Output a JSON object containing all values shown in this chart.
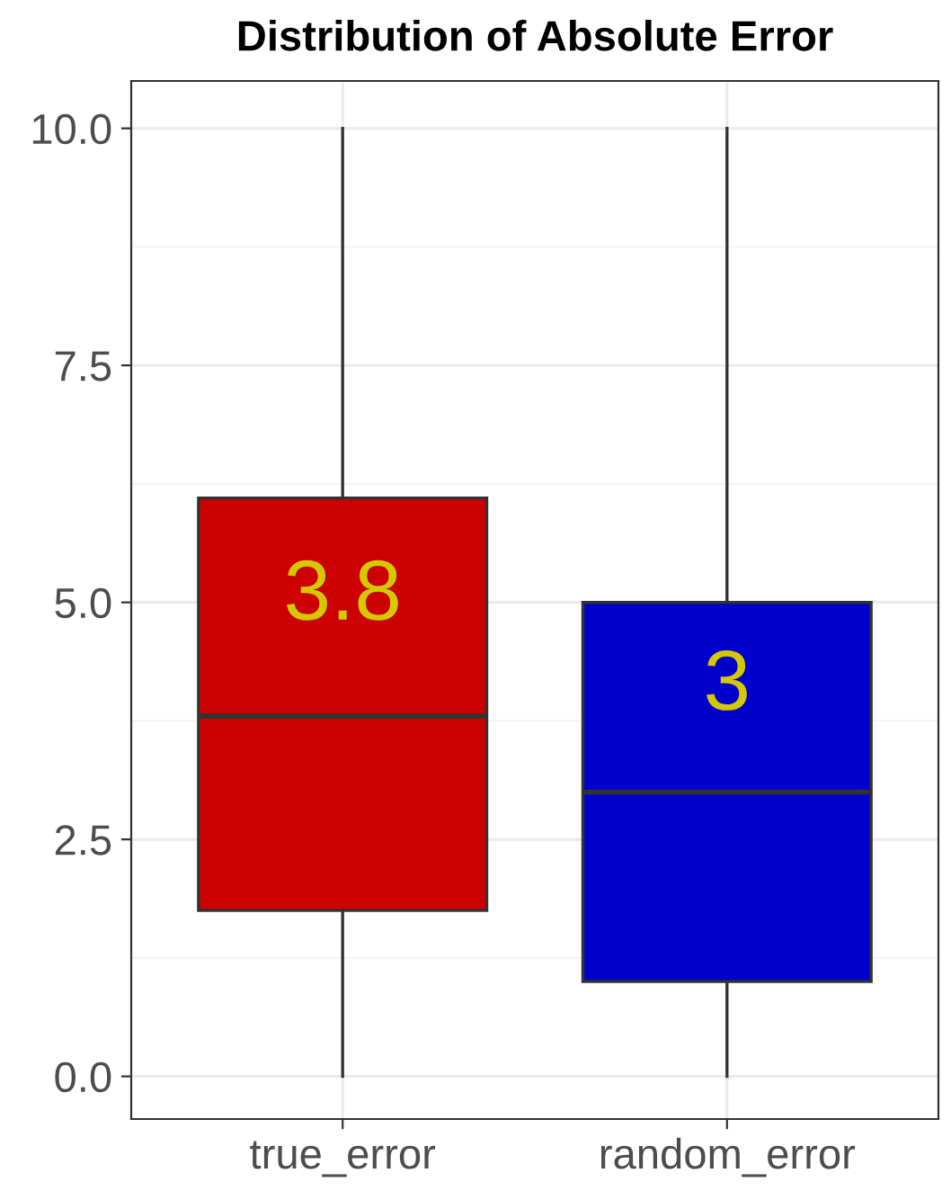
{
  "chart_data": {
    "type": "box",
    "title": "Distribution of Absolute Error",
    "categories": [
      "true_error",
      "random_error"
    ],
    "boxes": [
      {
        "low": 0,
        "q1": 1.75,
        "median": 3.8,
        "q3": 6.1,
        "high": 10
      },
      {
        "low": 0,
        "q1": 1.0,
        "median": 3.0,
        "q3": 5.0,
        "high": 10
      }
    ],
    "colors": [
      "#cc0000",
      "#0000cc"
    ],
    "value_labels": [
      "3.8",
      "3"
    ],
    "ylim": [
      -0.45,
      10.5
    ],
    "yticks": [
      {
        "value": 0,
        "label": "0.0"
      },
      {
        "value": 2.5,
        "label": "2.5"
      },
      {
        "value": 5,
        "label": "5.0"
      },
      {
        "value": 7.5,
        "label": "7.5"
      },
      {
        "value": 10,
        "label": "10.0"
      }
    ],
    "grid": true,
    "legend": false
  }
}
